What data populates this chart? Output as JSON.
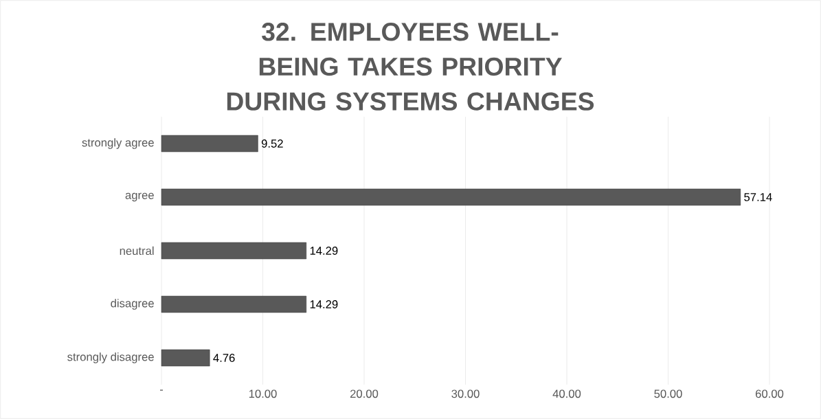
{
  "chart_data": {
    "type": "bar",
    "orientation": "horizontal",
    "title": "32. EMPLOYEES WELL-BEING TAKES PRIORITY DURING SYSTEMS CHANGES",
    "categories": [
      "strongly agree",
      "agree",
      "neutral",
      "disagree",
      "strongly disagree"
    ],
    "values": [
      9.52,
      57.14,
      14.29,
      14.29,
      4.76
    ],
    "color": "#595959",
    "xlim": [
      0,
      60
    ],
    "xticks": [
      {
        "value": 0,
        "label": "-"
      },
      {
        "value": 10,
        "label": "10.00"
      },
      {
        "value": 20,
        "label": "20.00"
      },
      {
        "value": 30,
        "label": "30.00"
      },
      {
        "value": 40,
        "label": "40.00"
      },
      {
        "value": 50,
        "label": "50.00"
      },
      {
        "value": 60,
        "label": "60.00"
      }
    ],
    "grid": "x",
    "data_labels": true
  }
}
